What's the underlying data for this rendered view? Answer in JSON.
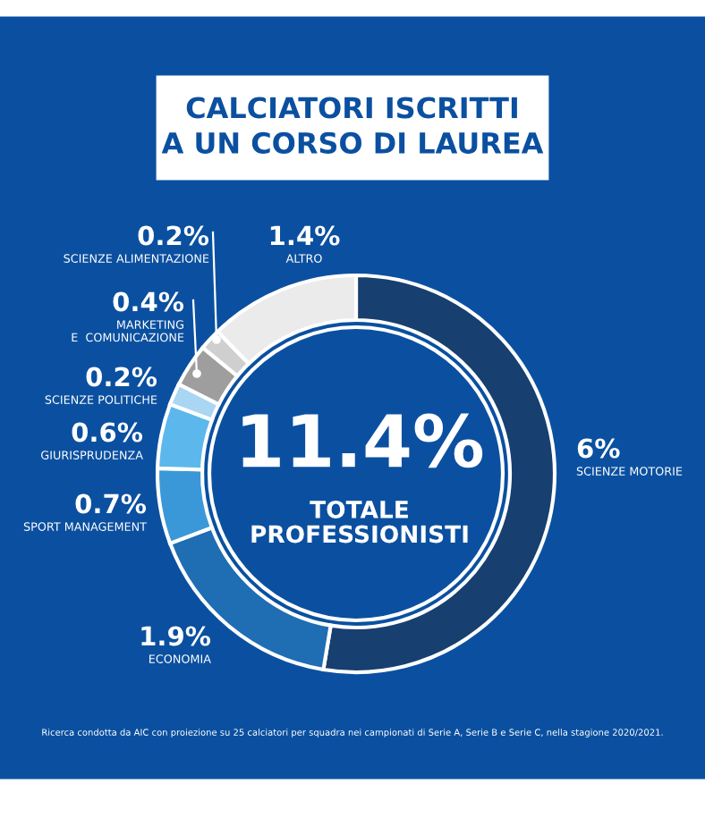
{
  "chart_data": {
    "type": "donut",
    "title": "CALCIATORI ISCRITTI\nA UN CORSO DI LAUREA",
    "categories": [
      "SCIENZE MOTORIE",
      "ECONOMIA",
      "SPORT MANAGEMENT",
      "GIURISPRUDENZA",
      "SCIENZE POLITICHE",
      "MARKETING\nE  COMUNICAZIONE",
      "SCIENZE ALIMENTAZIONE",
      "ALTRO"
    ],
    "values": [
      6,
      1.9,
      0.7,
      0.6,
      0.2,
      0.4,
      0.2,
      1.4
    ],
    "value_labels": [
      "6%",
      "1.9%",
      "0.7%",
      "0.6%",
      "0.2%",
      "0.4%",
      "0.2%",
      "1.4%"
    ],
    "colors": [
      "#173f6f",
      "#1f6db3",
      "#3b98d8",
      "#5cb8ec",
      "#a9d6f2",
      "#9e9e9e",
      "#cfcfcf",
      "#ebebeb"
    ],
    "annotations": [
      "11.4%",
      "TOTALE PROFESSIONISTI",
      "Ricerca condotta da AIC con proiezione su 25 calciatori per squadra nei campionati di Serie A, Serie B e Serie C, nella stagione 2020/2021."
    ]
  }
}
